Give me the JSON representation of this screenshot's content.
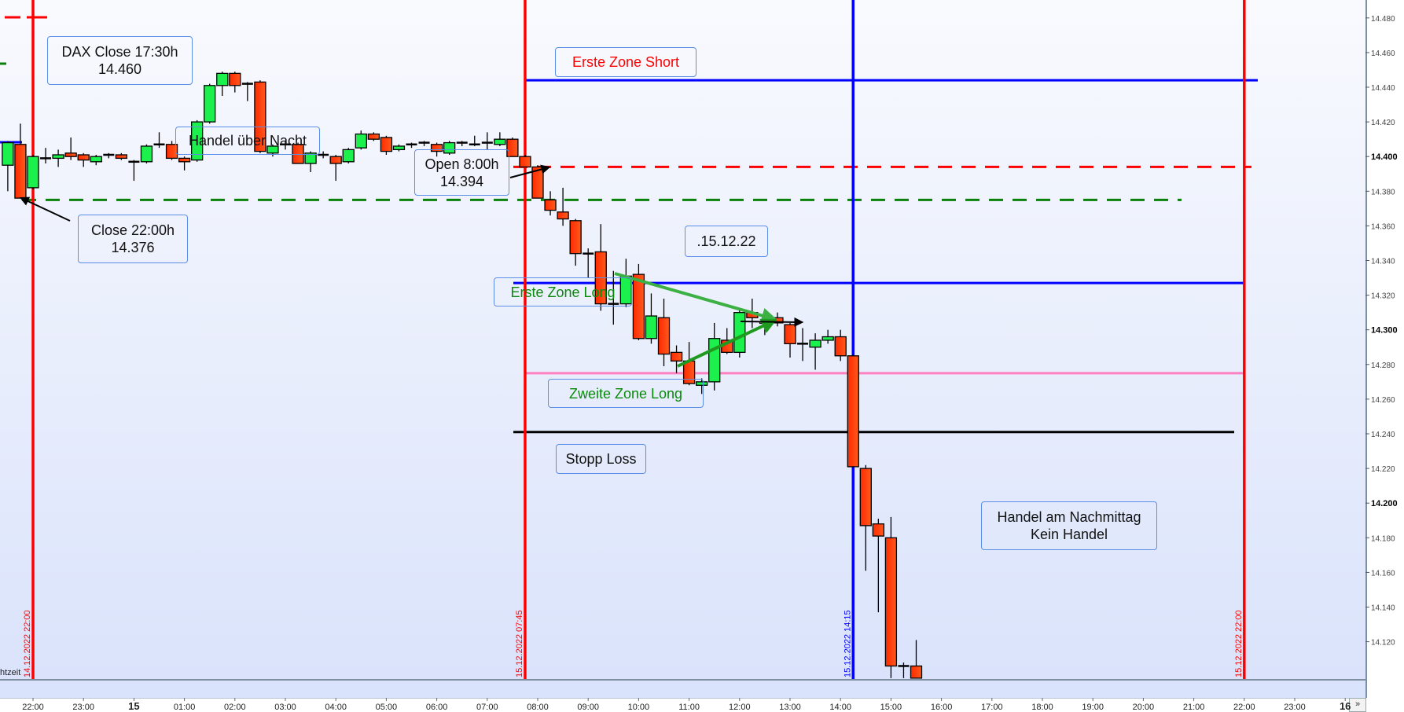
{
  "chart_data": {
    "type": "candlestick",
    "instrument_note": "DAX",
    "interval": "15 min",
    "ylim": [
      14.099,
      14.49
    ],
    "y_ticks": [
      "14.480",
      "14.460",
      "14.440",
      "14.420",
      "14.400",
      "14.380",
      "14.360",
      "14.340",
      "14.320",
      "14.300",
      "14.280",
      "14.260",
      "14.240",
      "14.220",
      "14.200",
      "14.180",
      "14.160",
      "14.140",
      "14.120"
    ],
    "y_ticks_bold": [
      "14.400",
      "14.300",
      "14.200"
    ],
    "x_ticks": [
      "22:00",
      "23:00",
      "15",
      "01:00",
      "02:00",
      "03:00",
      "04:00",
      "05:00",
      "06:00",
      "07:00",
      "08:00",
      "09:00",
      "10:00",
      "11:00",
      "12:00",
      "13:00",
      "14:00",
      "15:00",
      "16:00",
      "17:00",
      "18:00",
      "19:00",
      "20:00",
      "21:00",
      "22:00",
      "23:00",
      "16"
    ],
    "x_ticks_bold": [
      "15",
      "16"
    ],
    "grid": false,
    "colors": {
      "up": "#1cf04c",
      "down": "#ff3d0a"
    },
    "candles_columns": [
      "time",
      "open",
      "high",
      "low",
      "close"
    ],
    "candles": [
      [
        "14.12 21:30",
        14.395,
        14.409,
        14.38,
        14.408
      ],
      [
        "14.12 21:45",
        14.407,
        14.419,
        14.376,
        14.376
      ],
      [
        "14.12 22:00",
        14.382,
        14.401,
        14.381,
        14.4
      ],
      [
        "14.12 22:15",
        14.399,
        14.405,
        14.396,
        14.398
      ],
      [
        "14.12 22:30",
        14.399,
        14.404,
        14.394,
        14.401
      ],
      [
        "14.12 22:45",
        14.402,
        14.411,
        14.398,
        14.4
      ],
      [
        "14.12 23:00",
        14.401,
        14.402,
        14.394,
        14.398
      ],
      [
        "14.12 23:15",
        14.397,
        14.401,
        14.395,
        14.4
      ],
      [
        "14.12 23:30",
        14.4,
        14.402,
        14.399,
        14.401
      ],
      [
        "14.12 23:45",
        14.401,
        14.402,
        14.398,
        14.399
      ],
      [
        "15.12 00:00",
        14.397,
        14.398,
        14.386,
        14.396
      ],
      [
        "15.12 00:15",
        14.397,
        14.407,
        14.396,
        14.406
      ],
      [
        "15.12 00:30",
        14.406,
        14.414,
        14.405,
        14.407
      ],
      [
        "15.12 00:45",
        14.407,
        14.409,
        14.398,
        14.399
      ],
      [
        "15.12 01:00",
        14.399,
        14.4,
        14.392,
        14.397
      ],
      [
        "15.12 01:15",
        14.398,
        14.421,
        14.397,
        14.42
      ],
      [
        "15.12 01:30",
        14.42,
        14.442,
        14.419,
        14.441
      ],
      [
        "15.12 01:45",
        14.441,
        14.449,
        14.435,
        14.448
      ],
      [
        "15.12 02:00",
        14.448,
        14.449,
        14.437,
        14.441
      ],
      [
        "15.12 02:15",
        14.441,
        14.443,
        14.432,
        14.442
      ],
      [
        "15.12 02:30",
        14.443,
        14.444,
        14.402,
        14.403
      ],
      [
        "15.12 02:45",
        14.402,
        14.407,
        14.4,
        14.406
      ],
      [
        "15.12 03:00",
        14.407,
        14.409,
        14.404,
        14.407
      ],
      [
        "15.12 03:15",
        14.407,
        14.408,
        14.396,
        14.396
      ],
      [
        "15.12 03:30",
        14.396,
        14.403,
        14.391,
        14.402
      ],
      [
        "15.12 03:45",
        14.401,
        14.403,
        14.399,
        14.4
      ],
      [
        "15.12 04:00",
        14.4,
        14.401,
        14.386,
        14.396
      ],
      [
        "15.12 04:15",
        14.397,
        14.405,
        14.396,
        14.404
      ],
      [
        "15.12 04:30",
        14.405,
        14.415,
        14.404,
        14.413
      ],
      [
        "15.12 04:45",
        14.413,
        14.414,
        14.409,
        14.41
      ],
      [
        "15.12 05:00",
        14.411,
        14.412,
        14.401,
        14.403
      ],
      [
        "15.12 05:15",
        14.404,
        14.407,
        14.403,
        14.406
      ],
      [
        "15.12 05:30",
        14.406,
        14.408,
        14.405,
        14.407
      ],
      [
        "15.12 05:45",
        14.408,
        14.409,
        14.406,
        14.408
      ],
      [
        "15.12 06:00",
        14.407,
        14.408,
        14.4,
        14.403
      ],
      [
        "15.12 06:15",
        14.402,
        14.409,
        14.401,
        14.408
      ],
      [
        "15.12 06:30",
        14.408,
        14.409,
        14.406,
        14.407
      ],
      [
        "15.12 06:45",
        14.407,
        14.412,
        14.406,
        14.407
      ],
      [
        "15.12 07:00",
        14.407,
        14.414,
        14.404,
        14.408
      ],
      [
        "15.12 07:15",
        14.407,
        14.414,
        14.406,
        14.41
      ],
      [
        "15.12 07:30",
        14.41,
        14.411,
        14.4,
        14.4
      ],
      [
        "15.12 07:45",
        14.4,
        14.401,
        14.394,
        14.394
      ],
      [
        "15.12 08:00",
        14.394,
        14.395,
        14.376,
        14.376
      ],
      [
        "15.12 08:15",
        14.375,
        14.38,
        14.366,
        14.369
      ],
      [
        "15.12 08:30",
        14.368,
        14.382,
        14.36,
        14.364
      ],
      [
        "15.12 08:45",
        14.363,
        14.364,
        14.337,
        14.344
      ],
      [
        "15.12 09:00",
        14.344,
        14.347,
        14.33,
        14.344
      ],
      [
        "15.12 09:15",
        14.345,
        14.361,
        14.311,
        14.315
      ],
      [
        "15.12 09:30",
        14.315,
        14.334,
        14.303,
        14.315
      ],
      [
        "15.12 09:45",
        14.315,
        14.341,
        14.313,
        14.331
      ],
      [
        "15.12 10:00",
        14.332,
        14.338,
        14.294,
        14.295
      ],
      [
        "15.12 10:15",
        14.295,
        14.321,
        14.292,
        14.308
      ],
      [
        "15.12 10:30",
        14.307,
        14.318,
        14.279,
        14.286
      ],
      [
        "15.12 10:45",
        14.287,
        14.291,
        14.275,
        14.282
      ],
      [
        "15.12 11:00",
        14.282,
        14.293,
        14.268,
        14.269
      ],
      [
        "15.12 11:15",
        14.268,
        14.272,
        14.263,
        14.27
      ],
      [
        "15.12 11:30",
        14.27,
        14.304,
        14.265,
        14.295
      ],
      [
        "15.12 11:45",
        14.294,
        14.301,
        14.286,
        14.287
      ],
      [
        "15.12 12:00",
        14.287,
        14.312,
        14.284,
        14.31
      ],
      [
        "15.12 12:15",
        14.31,
        14.318,
        14.301,
        14.307
      ],
      [
        "15.12 12:30",
        14.304,
        14.312,
        14.297,
        14.304
      ],
      [
        "15.12 12:45",
        14.307,
        14.31,
        14.302,
        14.304
      ],
      [
        "15.12 13:00",
        14.303,
        14.304,
        14.284,
        14.292
      ],
      [
        "15.12 13:15",
        14.292,
        14.301,
        14.282,
        14.291
      ],
      [
        "15.12 13:30",
        14.29,
        14.298,
        14.277,
        14.294
      ],
      [
        "15.12 13:45",
        14.294,
        14.3,
        14.292,
        14.296
      ],
      [
        "15.12 14:00",
        14.296,
        14.3,
        14.282,
        14.285
      ],
      [
        "15.12 14:15",
        14.285,
        14.286,
        14.221,
        14.221
      ],
      [
        "15.12 14:30",
        14.22,
        14.222,
        14.161,
        14.187
      ],
      [
        "15.12 14:45",
        14.188,
        14.191,
        14.137,
        14.181
      ],
      [
        "15.12 15:00",
        14.18,
        14.192,
        14.099,
        14.106
      ],
      [
        "15.12 15:15",
        14.106,
        14.108,
        14.099,
        14.106
      ],
      [
        "15.12 15:30",
        14.106,
        14.121,
        14.099,
        14.099
      ]
    ],
    "levels": [
      {
        "price": 14.444,
        "color": "#0000ff",
        "style": "solid"
      },
      {
        "price": 14.394,
        "color": "#ff0000",
        "style": "dashed"
      },
      {
        "price": 14.375,
        "color": "#0a800a",
        "style": "dashed"
      },
      {
        "price": 14.327,
        "color": "#0000ff",
        "style": "solid"
      },
      {
        "price": 14.275,
        "color": "#ff80c0",
        "style": "solid"
      },
      {
        "price": 14.241,
        "color": "#000000",
        "style": "solid"
      }
    ],
    "vlines": [
      {
        "label": "14.12.2022 22:00",
        "color": "#ff0000"
      },
      {
        "label": "15.12.2022 07:45",
        "color": "#ff0000"
      },
      {
        "label": "15.12.2022 14:15",
        "color": "#0000ff"
      },
      {
        "label": "15.12.2022 22:00",
        "color": "#ff0000"
      }
    ]
  },
  "annotations": {
    "dax_close": {
      "line1": "DAX Close 17:30h",
      "line2": "14.460"
    },
    "overnight": {
      "text": "Handel über Nacht"
    },
    "open": {
      "line1": "Open 8:00h",
      "line2": "14.394"
    },
    "close": {
      "line1": "Close 22:00h",
      "line2": "14.376"
    },
    "short_zone": {
      "text": "Erste Zone Short"
    },
    "date": {
      "text": ".15.12.22"
    },
    "long_zone_1": {
      "text": "Erste Zone Long"
    },
    "long_zone_2": {
      "text": "Zweite Zone Long"
    },
    "stop_loss": {
      "text": "Stopp Loss"
    },
    "afternoon": {
      "line1": "Handel am Nachmittag",
      "line2": "Kein Handel"
    }
  },
  "ui": {
    "partial_label": "htzeit",
    "more_button": "»"
  }
}
